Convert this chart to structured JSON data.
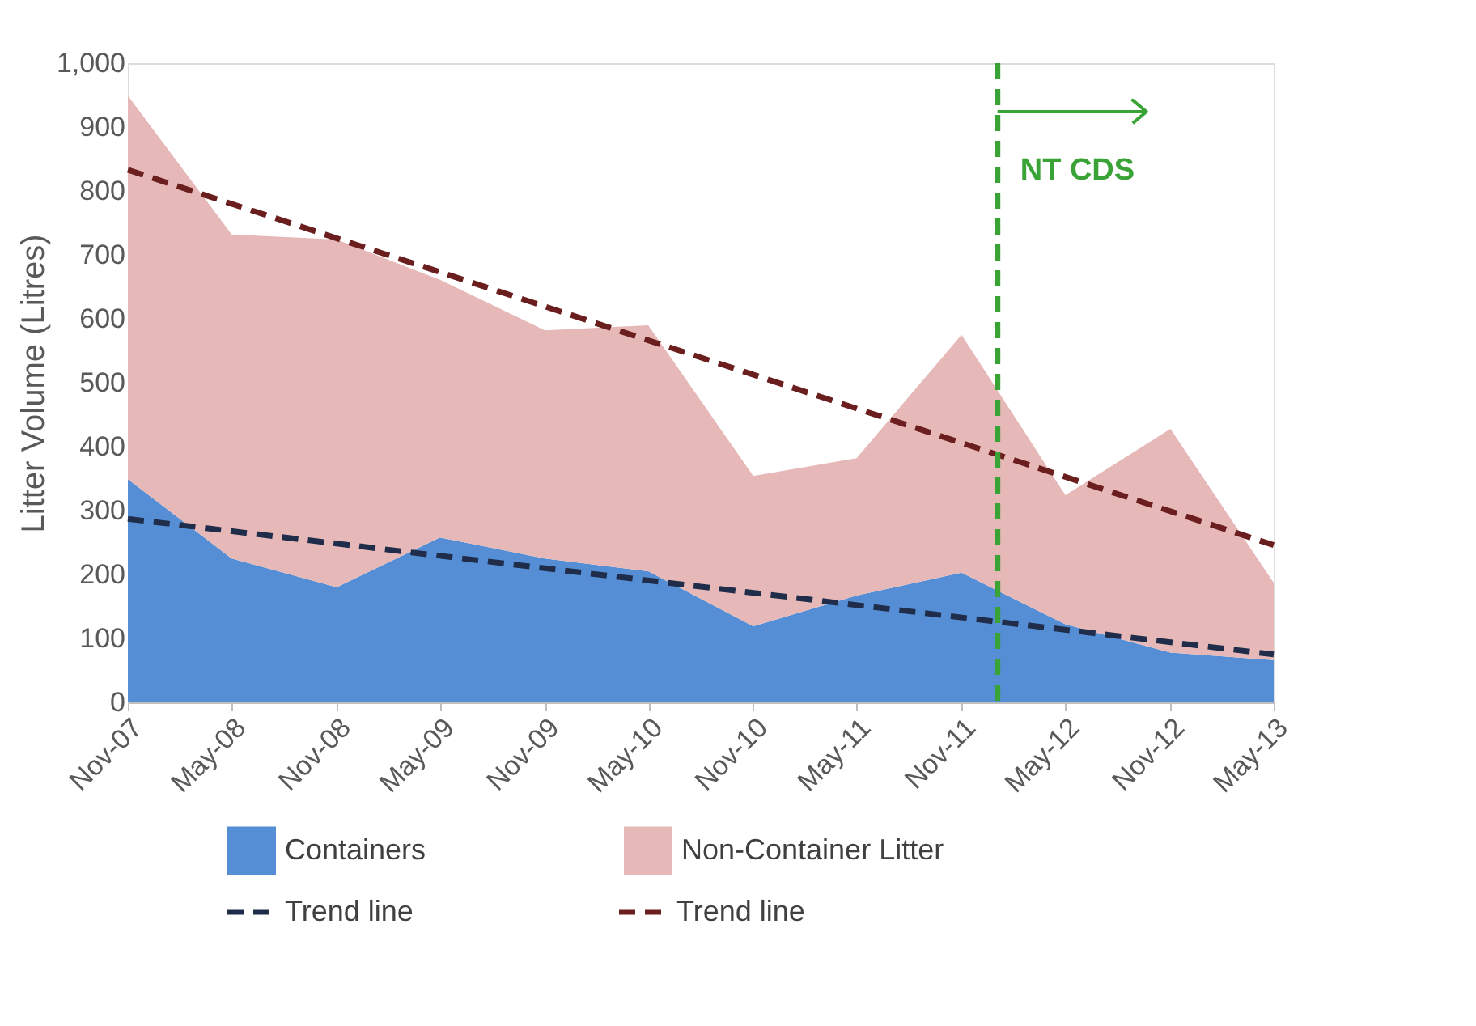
{
  "chart_data": {
    "type": "area",
    "stacked": true,
    "ylabel": "Litter Volume (Litres)",
    "x": [
      "2007-11",
      "2008-05",
      "2008-11",
      "2009-05",
      "2009-11",
      "2010-05",
      "2010-11",
      "2011-05",
      "2011-11",
      "2012-05",
      "2012-11",
      "2013-05"
    ],
    "xlim": [
      "2007-11",
      "2013-05"
    ],
    "xticks": [
      {
        "value": "2007-11",
        "label": "Nov-07"
      },
      {
        "value": "2008-05",
        "label": "May-08"
      },
      {
        "value": "2008-11",
        "label": "Nov-08"
      },
      {
        "value": "2009-05",
        "label": "May-09"
      },
      {
        "value": "2009-11",
        "label": "Nov-09"
      },
      {
        "value": "2010-05",
        "label": "May-10"
      },
      {
        "value": "2010-11",
        "label": "Nov-10"
      },
      {
        "value": "2011-05",
        "label": "May-11"
      },
      {
        "value": "2011-11",
        "label": "Nov-11"
      },
      {
        "value": "2012-05",
        "label": "May-12"
      },
      {
        "value": "2012-11",
        "label": "Nov-12"
      },
      {
        "value": "2013-05",
        "label": "May-13"
      }
    ],
    "ylim": [
      0,
      1000
    ],
    "yticks": [
      0,
      100,
      200,
      300,
      400,
      500,
      600,
      700,
      800,
      900,
      {
        "value": 1000,
        "label": "1,000"
      }
    ],
    "series": [
      {
        "name": "Containers",
        "color": "#558ed5",
        "values": [
          349,
          225,
          180,
          258,
          225,
          205,
          119,
          167,
          203,
          122,
          78,
          66
        ]
      },
      {
        "name": "Non-Container Litter",
        "color": "#e6b9b8",
        "values": [
          600,
          507,
          544,
          403,
          357,
          385,
          235,
          215,
          372,
          202,
          350,
          121
        ]
      },
      {
        "name": "Trend line",
        "type": "line",
        "color": "#1f2d4a",
        "line_style": "dashed",
        "x": [
          "2007-11",
          "2013-05"
        ],
        "values": [
          287,
          75
        ]
      },
      {
        "name": "Trend line",
        "type": "line",
        "color": "#6b1e1e",
        "line_style": "dashed",
        "x": [
          "2007-11",
          "2013-05"
        ],
        "values": [
          833,
          246
        ]
      }
    ],
    "ref_lines": [
      {
        "axis": "x",
        "value": "2012-01-03",
        "label": "NT CDS",
        "color": "#3aa335",
        "line_style": "dashed"
      }
    ],
    "grid": false,
    "legend": "bottom",
    "marker": "none"
  }
}
